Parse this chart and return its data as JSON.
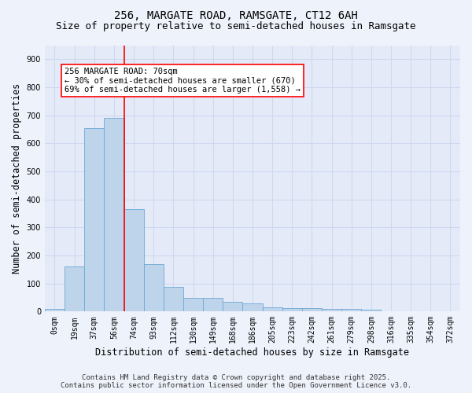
{
  "title_line1": "256, MARGATE ROAD, RAMSGATE, CT12 6AH",
  "title_line2": "Size of property relative to semi-detached houses in Ramsgate",
  "xlabel": "Distribution of semi-detached houses by size in Ramsgate",
  "ylabel": "Number of semi-detached properties",
  "footer_line1": "Contains HM Land Registry data © Crown copyright and database right 2025.",
  "footer_line2": "Contains public sector information licensed under the Open Government Licence v3.0.",
  "bar_labels": [
    "0sqm",
    "19sqm",
    "37sqm",
    "56sqm",
    "74sqm",
    "93sqm",
    "112sqm",
    "130sqm",
    "149sqm",
    "168sqm",
    "186sqm",
    "205sqm",
    "223sqm",
    "242sqm",
    "261sqm",
    "279sqm",
    "298sqm",
    "316sqm",
    "335sqm",
    "354sqm",
    "372sqm"
  ],
  "bar_values": [
    8,
    160,
    655,
    690,
    365,
    170,
    87,
    50,
    48,
    35,
    30,
    15,
    13,
    13,
    10,
    9,
    6,
    2,
    0,
    0,
    0
  ],
  "bar_color": "#bdd4ea",
  "bar_edge_color": "#6fa8d4",
  "vline_index": 3.5,
  "vline_color": "red",
  "annotation_text": "256 MARGATE ROAD: 70sqm\n← 30% of semi-detached houses are smaller (670)\n69% of semi-detached houses are larger (1,558) →",
  "annotation_box_color": "white",
  "annotation_box_edge": "red",
  "ylim": [
    0,
    950
  ],
  "yticks": [
    0,
    100,
    200,
    300,
    400,
    500,
    600,
    700,
    800,
    900
  ],
  "background_color": "#eef2fb",
  "plot_bg_color": "#e4eaf8",
  "grid_color": "#d0d8f0",
  "title_fontsize": 10,
  "subtitle_fontsize": 9,
  "axis_label_fontsize": 8.5,
  "tick_fontsize": 7,
  "annotation_fontsize": 7.5,
  "footer_fontsize": 6.5
}
